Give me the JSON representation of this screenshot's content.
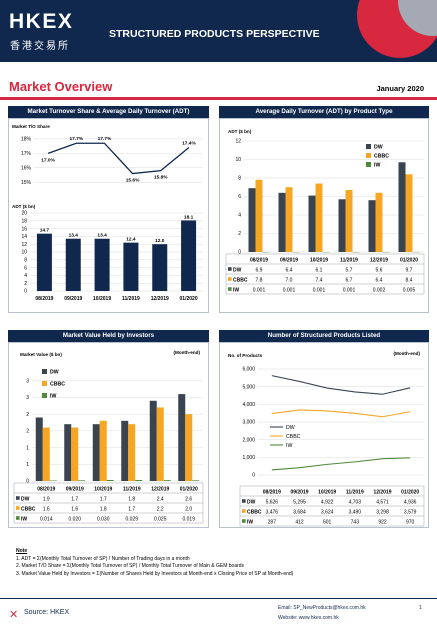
{
  "header": {
    "logo": "HKEX",
    "logo_chinese": "香港交易所",
    "title": "STRUCTURED PRODUCTS PERSPECTIVE"
  },
  "page": {
    "title": "Market Overview",
    "date": "January 2020"
  },
  "colors": {
    "navy": "#10284d",
    "red": "#d8283f",
    "dw": "#3a4451",
    "cbbc": "#f5a623",
    "iw": "#4f8a3a"
  },
  "panels": {
    "turnover": {
      "title": "Market Turnover Share & Average Daily Turnover (ADT)"
    },
    "adt_product": {
      "title": "Average Daily Turnover (ADT) by Product Type"
    },
    "value_held": {
      "title": "Market Value Held by Investors"
    },
    "listed": {
      "title": "Number of Structured Products Listed"
    }
  },
  "chart_data": [
    {
      "type": "line",
      "ylabel": "Market T/O Share",
      "categories": [
        "08/2019",
        "09/2019",
        "10/2019",
        "11/2019",
        "12/2019",
        "01/2020"
      ],
      "series": [
        {
          "name": "",
          "values": [
            17.0,
            17.7,
            17.7,
            15.6,
            15.8,
            17.4
          ]
        }
      ],
      "labels": [
        "17.0%",
        "17.7%",
        "17.7%",
        "15.6%",
        "15.8%",
        "17.4%"
      ],
      "ticks": [
        "18%",
        "17%",
        "16%",
        "15%"
      ],
      "ylim": [
        14.6,
        18.2
      ]
    },
    {
      "type": "bar",
      "ylabel": "ADT ($ bn)",
      "categories": [
        "08/2019",
        "09/2019",
        "10/2019",
        "11/2019",
        "12/2019",
        "01/2020"
      ],
      "series": [
        {
          "name": "",
          "values": [
            14.7,
            13.4,
            13.4,
            12.4,
            12.0,
            18.1
          ]
        }
      ],
      "ticks": [
        "20",
        "18",
        "16",
        "14",
        "12",
        "10",
        "8",
        "6",
        "4",
        "2",
        "0"
      ],
      "ylim": [
        0,
        20
      ]
    },
    {
      "type": "bar",
      "ylabel": "ADT ($ bn)",
      "categories": [
        "08/2019",
        "09/2019",
        "10/2019",
        "11/2019",
        "12/2019",
        "01/2020"
      ],
      "series": [
        {
          "name": "DW",
          "values": [
            6.9,
            6.4,
            6.1,
            5.7,
            5.6,
            9.7
          ],
          "table": [
            "6.9",
            "6.4",
            "6.1",
            "5.7",
            "5.6",
            "9.7"
          ]
        },
        {
          "name": "CBBC",
          "values": [
            7.8,
            7.0,
            7.4,
            6.7,
            6.4,
            8.4
          ],
          "table": [
            "7.8",
            "7.0",
            "7.4",
            "6.7",
            "6.4",
            "8.4"
          ]
        },
        {
          "name": "IW",
          "values": [
            0.001,
            0.001,
            0.001,
            0.001,
            0.002,
            0.005
          ],
          "table": [
            "0.001",
            "0.001",
            "0.001",
            "0.001",
            "0.002",
            "0.005"
          ]
        }
      ],
      "ticks": [
        "12",
        "10",
        "8",
        "6",
        "4",
        "2",
        "0"
      ],
      "ylim": [
        0,
        12
      ],
      "legend": "top-right"
    },
    {
      "type": "bar",
      "ylabel": "Market Value ($ bn)",
      "note": "(Month-end)",
      "categories": [
        "08/2019",
        "09/2019",
        "10/2019",
        "11/2019",
        "12/2019",
        "01/2020"
      ],
      "series": [
        {
          "name": "DW",
          "values": [
            1.9,
            1.7,
            1.7,
            1.8,
            2.4,
            2.6
          ],
          "table": [
            "1.9",
            "1.7",
            "1.7",
            "1.8",
            "2.4",
            "2.6"
          ]
        },
        {
          "name": "CBBC",
          "values": [
            1.6,
            1.6,
            1.8,
            1.7,
            2.2,
            2.0
          ],
          "table": [
            "1.6",
            "1.6",
            "1.8",
            "1.7",
            "2.2",
            "2.0"
          ]
        },
        {
          "name": "IW",
          "values": [
            0.014,
            0.02,
            0.03,
            0.029,
            0.025,
            0.019
          ],
          "table": [
            "0.014",
            "0.020",
            "0.030",
            "0.029",
            "0.025",
            "0.019"
          ]
        }
      ],
      "ticks": [
        "3",
        "3",
        "2",
        "2",
        "1",
        "1",
        "0"
      ],
      "ylim": [
        0,
        3.5
      ],
      "legend": "top-left"
    },
    {
      "type": "line",
      "ylabel": "No. of Products",
      "note": "(Month-end)",
      "categories": [
        "08/2019",
        "09/2019",
        "10/2019",
        "11/2019",
        "12/2019",
        "01/2020"
      ],
      "series": [
        {
          "name": "DW",
          "values": [
            5626,
            5295,
            4922,
            4703,
            4571,
            4936
          ],
          "table": [
            "5,626",
            "5,295",
            "4,922",
            "4,703",
            "4,571",
            "4,936"
          ]
        },
        {
          "name": "CBBC",
          "values": [
            3476,
            3684,
            3624,
            3490,
            3298,
            3579
          ],
          "table": [
            "3,476",
            "3,684",
            "3,624",
            "3,490",
            "3,298",
            "3,579"
          ]
        },
        {
          "name": "IW",
          "values": [
            287,
            412,
            601,
            743,
            922,
            970
          ],
          "table": [
            "287",
            "412",
            "601",
            "743",
            "922",
            "970"
          ]
        }
      ],
      "ticks": [
        "6,000",
        "5,000",
        "4,000",
        "3,000",
        "2,000",
        "1,000",
        "0"
      ],
      "ylim": [
        0,
        6000
      ],
      "legend": "bottom-left"
    }
  ],
  "notes": {
    "title": "Note",
    "lines": [
      "1. ADT = Σ(Monthly Total Turnover of SP) / Number of Trading days in a month",
      "2. Market T/O Share = Σ(Monthly Total Turnover of SP) / Monthly Total Turnover of Main & GEM boards",
      "3. Market Value Held by Investors = Σ(Number of Shares Held by Investors at Month-end x Closing Price of SP at Month-end)"
    ]
  },
  "footer": {
    "source": "Source: HKEX",
    "email": "Email: SP_NewProducts@hkex.com.hk",
    "website": "Website: www.hkex.com.hk",
    "page": "1"
  }
}
